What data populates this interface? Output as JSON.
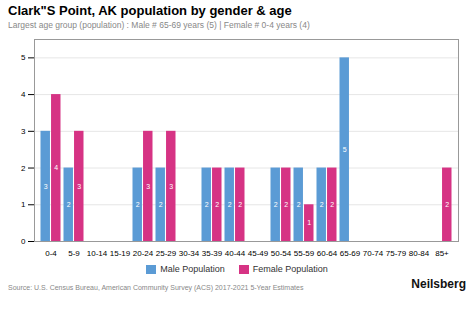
{
  "chart_data": {
    "type": "bar",
    "title": "Clark\"S Point, AK population by gender & age",
    "subtitle": "Largest age group (population) : Male # 65-69 years (5) | Female # 0-4 years (4)",
    "source": "Source: U.S. Census Bureau, American Community Survey (ACS) 2017-2021 5-Year Estimates",
    "brand": "Neilsberg",
    "categories": [
      "0-4",
      "5-9",
      "10-14",
      "15-19",
      "20-24",
      "25-29",
      "30-34",
      "35-39",
      "40-44",
      "45-49",
      "50-54",
      "55-59",
      "60-64",
      "65-69",
      "70-74",
      "75-79",
      "80-84",
      "85+"
    ],
    "series": [
      {
        "name": "Male Population",
        "color": "#5b9bd5",
        "values": [
          3,
          2,
          0,
          0,
          2,
          2,
          0,
          2,
          2,
          0,
          2,
          2,
          2,
          5,
          0,
          0,
          0,
          0
        ],
        "value_labels": [
          "3",
          "2",
          null,
          null,
          "2",
          "2",
          null,
          "2",
          "2",
          null,
          "2",
          "2",
          "2",
          "5",
          null,
          null,
          null,
          null
        ]
      },
      {
        "name": "Female Population",
        "color": "#d63384",
        "values": [
          4,
          3,
          0,
          0,
          3,
          3,
          0,
          2,
          2,
          0,
          2,
          1,
          2,
          0,
          0,
          0,
          0,
          2
        ],
        "value_labels": [
          "4",
          "3",
          null,
          null,
          "3",
          "3",
          null,
          "2",
          "2",
          null,
          "2",
          "1",
          "2",
          null,
          null,
          null,
          null,
          "2"
        ]
      }
    ],
    "ylim": [
      0,
      5.5
    ],
    "yticks": [
      0,
      1,
      2,
      3,
      4,
      5
    ],
    "grid": true,
    "legend": "bottom",
    "data_labels": true
  }
}
